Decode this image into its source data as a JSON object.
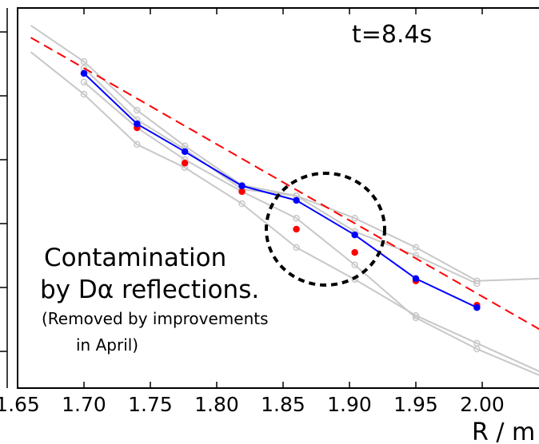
{
  "chart_data": {
    "type": "line",
    "annotations": [
      "t=8.4s",
      "Contamination",
      "by Dα reflections.",
      "(Removed by improvements",
      "in April)"
    ],
    "xlabel": "R / m",
    "xlim": [
      1.65,
      2.05
    ],
    "ylim": [
      0,
      100
    ],
    "xticks": [
      1.65,
      {
        "value": 1.7,
        "label": "1.70"
      },
      1.75,
      {
        "value": 1.8,
        "label": "1.80"
      },
      1.85,
      {
        "value": 1.9,
        "label": "1.90"
      },
      1.95,
      {
        "value": 2.0,
        "label": "2.00"
      }
    ],
    "series": [
      {
        "color": "#c8c8c8",
        "style": "open",
        "x": [
          1.66,
          1.7,
          1.74,
          1.776,
          1.819,
          1.86,
          1.904,
          1.95,
          1.996,
          2.043
        ],
        "values": [
          95.4,
          85.9,
          73.1,
          63.7,
          53.4,
          50.6,
          44.7,
          37.0,
          28.2,
          28.8
        ]
      },
      {
        "color": "#c8c8c8",
        "style": "open",
        "x": [
          1.66,
          1.7,
          1.74,
          1.776,
          1.819,
          1.86,
          1.904,
          1.95,
          1.996,
          2.043
        ],
        "values": [
          88.4,
          77.3,
          64.1,
          58.0,
          48.5,
          37.0,
          28.6,
          19.1,
          11.8,
          4.4
        ]
      },
      {
        "color": "#c8c8c8",
        "style": "open",
        "x": [
          1.7,
          1.74,
          1.776,
          1.819,
          1.86,
          1.904,
          1.95,
          1.996,
          2.043
        ],
        "values": [
          80.5,
          68.5,
          60.1,
          51.7,
          44.7,
          32.4,
          18.5,
          10.3,
          3.4
        ]
      },
      {
        "color": "#c8c8c8",
        "style": "open",
        "x": [
          1.7,
          1.74,
          1.776,
          1.819,
          1.86,
          1.904,
          1.95,
          1.996
        ],
        "values": [
          84.2,
          70.6,
          62.8,
          52.3,
          50.6,
          41.2,
          34.9,
          27.5
        ]
      },
      {
        "color": "#ff0000",
        "style": "dashed",
        "x": [
          1.66,
          2.043
        ],
        "values": [
          92.2,
          15.5
        ]
      },
      {
        "color": "#ff0000",
        "style": "dots",
        "x": [
          1.7,
          1.74,
          1.776,
          1.819,
          1.86,
          1.904,
          1.95,
          1.996
        ],
        "values": [
          82.8,
          68.5,
          59.2,
          51.7,
          41.8,
          35.7,
          28.2,
          21.8
        ]
      },
      {
        "color": "#0000ff",
        "style": "solid",
        "x": [
          1.7,
          1.74,
          1.776,
          1.819,
          1.86,
          1.904,
          1.95,
          1.996
        ],
        "values": [
          82.8,
          69.5,
          62.2,
          53.2,
          49.4,
          40.3,
          28.8,
          21.2
        ]
      }
    ]
  }
}
